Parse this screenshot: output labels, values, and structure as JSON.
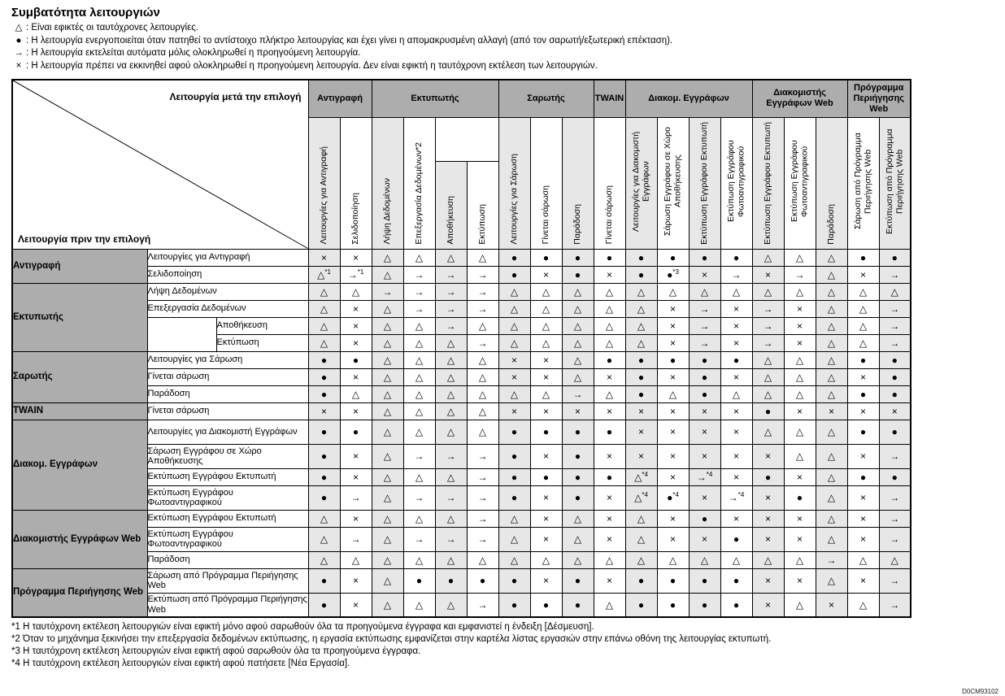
{
  "title": "Συμβατότητα λειτουργιών",
  "legend": [
    {
      "symbol": "△",
      "text": ": Είναι εφικτές οι ταυτόχρονες λειτουργίες."
    },
    {
      "symbol": "●",
      "text": ": Η λειτουργία ενεργοποιείται όταν πατηθεί το αντίστοιχο πλήκτρο λειτουργίας και έχει γίνει η απομακρυσμένη αλλαγή (από τον σαρωτή/εξωτερική επέκταση)."
    },
    {
      "symbol": "→",
      "text": ": Η λειτουργία εκτελείται αυτόματα μόλις ολοκληρωθεί η προηγούμενη λειτουργία."
    },
    {
      "symbol": "×",
      "text": ": Η λειτουργία πρέπει να εκκινηθεί αφού ολοκληρωθεί η προηγούμενη λειτουργία. Δεν είναι εφικτή η ταυτόχρονη εκτέλεση των λειτουργιών."
    }
  ],
  "matrix": {
    "corner": {
      "after": "Λειτουργία μετά την επιλογή",
      "before": "Λειτουργία πριν την επιλογή"
    },
    "column_groups": [
      {
        "label": "Αντιγραφή",
        "columns": [
          {
            "label": "Λειτουργίες για Αντιγραφή"
          },
          {
            "label": "Σελιδοποίηση"
          }
        ]
      },
      {
        "label": "Εκτυπωτής",
        "columns": [
          {
            "label": "Λήψη Δεδομένων"
          },
          {
            "label": "Επεξεργασία Δεδομένων*2"
          },
          {
            "label": "Αποθήκευση",
            "nested": true
          },
          {
            "label": "Εκτύπωση",
            "nested": true
          }
        ]
      },
      {
        "label": "Σαρωτής",
        "columns": [
          {
            "label": "Λειτουργίες για Σάρωση"
          },
          {
            "label": "Γίνεται σάρωση"
          },
          {
            "label": "Παράδοση"
          }
        ]
      },
      {
        "label": "TWAIN",
        "columns": [
          {
            "label": "Γίνεται σάρωση"
          }
        ]
      },
      {
        "label": "Διακομ. Εγγράφων",
        "columns": [
          {
            "label": "Λειτουργίες για Διακομιστή Εγγράφων"
          },
          {
            "label": "Σάρωση Εγγράφου σε Χώρο Αποθήκευσης"
          },
          {
            "label": "Εκτύπωση Εγγράφου Εκτυπωτή"
          },
          {
            "label": "Εκτύπωση Εγγράφου Φωτοαντιγραφικού"
          }
        ]
      },
      {
        "label": "Διακομιστής Εγγράφων Web",
        "columns": [
          {
            "label": "Εκτύπωση Εγγράφου Εκτυπωτή"
          },
          {
            "label": "Εκτύπωση Εγγράφου Φωτοαντιγραφικού"
          },
          {
            "label": "Παράδοση"
          }
        ]
      },
      {
        "label": "Πρόγραμμα Περιήγησης Web",
        "columns": [
          {
            "label": "Σάρωση από Πρόγραμμα Περιήγησης Web"
          },
          {
            "label": "Εκτύπωση από Πρόγραμμα Περιήγησης Web"
          }
        ]
      }
    ],
    "row_groups": [
      {
        "label": "Αντιγραφή",
        "rows": [
          {
            "label": "Λειτουργίες για Αντιγραφή",
            "cells": [
              "×",
              "×",
              "△",
              "△",
              "△",
              "△",
              "●",
              "●",
              "●",
              "●",
              "●",
              "●",
              "●",
              "●",
              "△",
              "△",
              "△",
              "●",
              "●"
            ]
          },
          {
            "label": "Σελιδοποίηση",
            "cells": [
              "△*1",
              "→*1",
              "△",
              "→",
              "→",
              "→",
              "●",
              "×",
              "●",
              "×",
              "●",
              "●*3",
              "×",
              "→",
              "×",
              "→",
              "△",
              "×",
              "→"
            ]
          }
        ]
      },
      {
        "label": "Εκτυπωτής",
        "rows": [
          {
            "label": "Λήψη Δεδομένων",
            "cells": [
              "△",
              "△",
              "→",
              "→",
              "→",
              "→",
              "△",
              "△",
              "△",
              "△",
              "△",
              "△",
              "△",
              "△",
              "△",
              "△",
              "△",
              "△",
              "△"
            ]
          },
          {
            "label": "Επεξεργασία Δεδομένων",
            "cells": [
              "△",
              "×",
              "△",
              "→",
              "→",
              "→",
              "△",
              "△",
              "△",
              "△",
              "△",
              "×",
              "→",
              "×",
              "→",
              "×",
              "△",
              "△",
              "→"
            ]
          },
          {
            "label": "Αποθήκευση",
            "nested": true,
            "cells": [
              "△",
              "×",
              "△",
              "△",
              "→",
              "△",
              "△",
              "△",
              "△",
              "△",
              "△",
              "×",
              "→",
              "×",
              "→",
              "×",
              "△",
              "△",
              "→"
            ]
          },
          {
            "label": "Εκτύπωση",
            "nested": true,
            "cells": [
              "△",
              "×",
              "△",
              "△",
              "△",
              "→",
              "△",
              "△",
              "△",
              "△",
              "△",
              "×",
              "→",
              "×",
              "→",
              "×",
              "△",
              "△",
              "→"
            ]
          }
        ]
      },
      {
        "label": "Σαρωτής",
        "rows": [
          {
            "label": "Λειτουργίες για Σάρωση",
            "cells": [
              "●",
              "●",
              "△",
              "△",
              "△",
              "△",
              "×",
              "×",
              "△",
              "●",
              "●",
              "●",
              "●",
              "●",
              "△",
              "△",
              "△",
              "●",
              "●"
            ]
          },
          {
            "label": "Γίνεται σάρωση",
            "cells": [
              "●",
              "×",
              "△",
              "△",
              "△",
              "△",
              "×",
              "×",
              "△",
              "×",
              "●",
              "×",
              "●",
              "×",
              "△",
              "△",
              "△",
              "×",
              "●"
            ]
          },
          {
            "label": "Παράδοση",
            "cells": [
              "●",
              "△",
              "△",
              "△",
              "△",
              "△",
              "△",
              "△",
              "→",
              "△",
              "●",
              "△",
              "●",
              "△",
              "△",
              "△",
              "△",
              "●",
              "●"
            ]
          }
        ]
      },
      {
        "label": "TWAIN",
        "rows": [
          {
            "label": "Γίνεται σάρωση",
            "cells": [
              "×",
              "×",
              "△",
              "△",
              "△",
              "△",
              "×",
              "×",
              "×",
              "×",
              "×",
              "×",
              "×",
              "×",
              "●",
              "×",
              "×",
              "×",
              "×"
            ]
          }
        ]
      },
      {
        "label": "Διακομ. Εγγράφων",
        "rows": [
          {
            "label": "Λειτουργίες για Διακομιστή Εγγράφων",
            "cells": [
              "●",
              "●",
              "△",
              "△",
              "△",
              "△",
              "●",
              "●",
              "●",
              "●",
              "×",
              "×",
              "×",
              "×",
              "△",
              "△",
              "△",
              "●",
              "●"
            ]
          },
          {
            "label": "Σάρωση Εγγράφου σε Χώρο Αποθήκευσης",
            "cells": [
              "●",
              "×",
              "△",
              "→",
              "→",
              "→",
              "●",
              "×",
              "●",
              "×",
              "×",
              "×",
              "×",
              "×",
              "×",
              "△",
              "△",
              "×",
              "→"
            ]
          },
          {
            "label": "Εκτύπωση Εγγράφου Εκτυπωτή",
            "cells": [
              "●",
              "×",
              "△",
              "△",
              "△",
              "→",
              "●",
              "●",
              "●",
              "●",
              "△*4",
              "×",
              "→*4",
              "×",
              "●",
              "×",
              "△",
              "●",
              "●"
            ]
          },
          {
            "label": "Εκτύπωση Εγγράφου Φωτοαντιγραφικού",
            "cells": [
              "●",
              "→",
              "△",
              "→",
              "→",
              "→",
              "●",
              "×",
              "●",
              "×",
              "△*4",
              "●*4",
              "×",
              "→*4",
              "×",
              "●",
              "△",
              "×",
              "→"
            ]
          }
        ]
      },
      {
        "label": "Διακομιστής Εγγράφων Web",
        "rows": [
          {
            "label": "Εκτύπωση Εγγράφου Εκτυπωτή",
            "cells": [
              "△",
              "×",
              "△",
              "△",
              "△",
              "→",
              "△",
              "×",
              "△",
              "×",
              "△",
              "×",
              "●",
              "×",
              "×",
              "×",
              "△",
              "×",
              "→"
            ]
          },
          {
            "label": "Εκτύπωση Εγγράφου Φωτοαντιγραφικού",
            "cells": [
              "△",
              "→",
              "△",
              "→",
              "→",
              "→",
              "△",
              "×",
              "△",
              "×",
              "△",
              "×",
              "×",
              "●",
              "×",
              "×",
              "△",
              "×",
              "→"
            ]
          },
          {
            "label": "Παράδοση",
            "cells": [
              "△",
              "△",
              "△",
              "△",
              "△",
              "△",
              "△",
              "△",
              "△",
              "△",
              "△",
              "△",
              "△",
              "△",
              "△",
              "△",
              "→",
              "△",
              "△"
            ]
          }
        ]
      },
      {
        "label": "Πρόγραμμα Περιήγησης Web",
        "rows": [
          {
            "label": "Σάρωση από Πρόγραμμα Περιήγησης Web",
            "cells": [
              "●",
              "×",
              "△",
              "●",
              "●",
              "●",
              "●",
              "×",
              "●",
              "×",
              "●",
              "●",
              "●",
              "●",
              "×",
              "×",
              "△",
              "×",
              "→"
            ]
          },
          {
            "label": "Εκτύπωση από Πρόγραμμα Περιήγησης Web",
            "cells": [
              "●",
              "×",
              "△",
              "△",
              "△",
              "→",
              "●",
              "●",
              "●",
              "△",
              "●",
              "●",
              "●",
              "●",
              "×",
              "△",
              "×",
              "△",
              "→"
            ]
          }
        ]
      }
    ]
  },
  "footnotes": [
    "*1 Η ταυτόχρονη εκτέλεση λειτουργιών είναι εφικτή μόνο αφού σαρωθούν όλα τα προηγούμενα έγγραφα και εμφανιστεί η ένδειξη [Δέσμευση].",
    "*2 Όταν το μηχάνημα ξεκινήσει την επεξεργασία δεδομένων εκτύπωσης, η εργασία εκτύπωσης εμφανίζεται στην καρτέλα λίστας εργασιών στην επάνω οθόνη της λειτουργίας εκτυπωτή.",
    "*3 Η ταυτόχρονη εκτέλεση λειτουργιών είναι εφικτή αφού σαρωθούν όλα τα προηγούμενα έγγραφα.",
    "*4 Η ταυτόχρονη εκτέλεση λειτουργιών είναι εφικτή αφού πατήσετε [Νέα Εργασία]."
  ],
  "doc_code": "D0CM93102",
  "colors": {
    "header_gray": "#adadad",
    "stripe": "#e7e7e7"
  }
}
